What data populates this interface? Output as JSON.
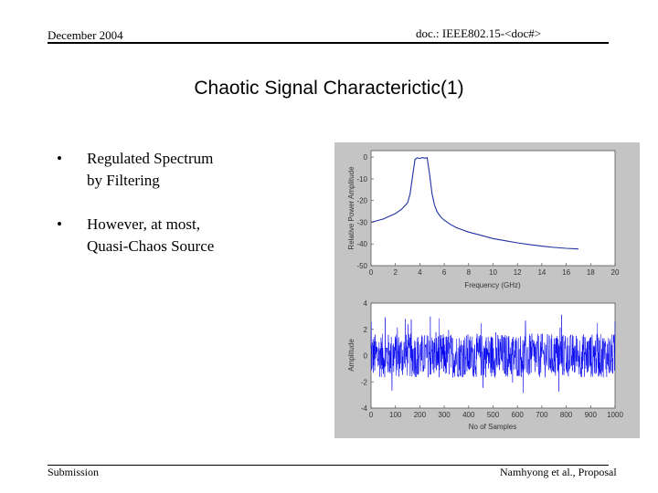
{
  "header": {
    "date": "December 2004",
    "doc": "doc.: IEEE802.15-<doc#>"
  },
  "title": "Chaotic Signal Characterictic(1)",
  "bullets": [
    {
      "line1": "Regulated Spectrum",
      "line2": "by Filtering"
    },
    {
      "line1": "However, at most,",
      "line2": "Quasi-Chaos Source"
    }
  ],
  "footer": {
    "left": "Submission",
    "right": "Namhyong et al., Proposal"
  },
  "chart_data": [
    {
      "type": "line",
      "xlabel": "Frequency (GHz)",
      "ylabel": "Relative Power Amplitude",
      "xlim": [
        0,
        20
      ],
      "ylim": [
        -50,
        3
      ],
      "xticks": [
        0,
        2,
        4,
        6,
        8,
        10,
        12,
        14,
        16,
        18,
        20
      ],
      "yticks": [
        0,
        -10,
        -20,
        -30,
        -40,
        -50
      ],
      "x": [
        0,
        1,
        2,
        2.5,
        3,
        3.2,
        3.4,
        3.6,
        3.8,
        4,
        4.2,
        4.4,
        4.6,
        4.8,
        5,
        5.2,
        5.4,
        5.7,
        6,
        6.5,
        7,
        8,
        9,
        10,
        11,
        12,
        13,
        14,
        15,
        16,
        17
      ],
      "y": [
        -30,
        -28.5,
        -26,
        -24,
        -21,
        -17,
        -9,
        -1,
        -0.3,
        -0.6,
        -0.2,
        -0.5,
        -0.3,
        -8,
        -17,
        -22,
        -25,
        -27.5,
        -29,
        -31,
        -32.5,
        -34.5,
        -36,
        -37.5,
        -38.5,
        -39.5,
        -40.3,
        -41,
        -41.6,
        -42,
        -42.3
      ],
      "color": "#2030a0"
    },
    {
      "type": "line",
      "xlabel": "No of Samples",
      "ylabel": "Amplitude",
      "xlim": [
        0,
        1000
      ],
      "ylim": [
        -4,
        4
      ],
      "xticks": [
        0,
        100,
        200,
        300,
        400,
        500,
        600,
        700,
        800,
        900,
        1000
      ],
      "xtick_labels": [
        "0",
        "100",
        "200",
        "300",
        "400",
        "500",
        "600",
        "700",
        "800",
        "900",
        "1000"
      ],
      "yticks": [
        4,
        2,
        0,
        -2,
        -4
      ],
      "num_samples": 1000,
      "typical_amplitude": 1.2,
      "peak_amplitude": 3.2,
      "color": "#0000ee"
    }
  ]
}
